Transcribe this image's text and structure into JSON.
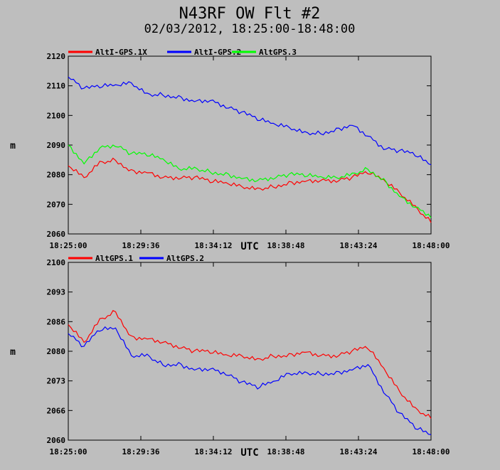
{
  "title": "N43RF OW Flt #2",
  "subtitle": "02/03/2012, 18:25:00-18:48:00",
  "chart_data": [
    {
      "type": "line",
      "xlabel": "UTC",
      "ylabel": "m",
      "x_ticks": [
        "18:25:00",
        "18:29:36",
        "18:34:12",
        "18:38:48",
        "18:43:24",
        "18:48:00"
      ],
      "xlim": [
        "18:25:00",
        "18:48:00"
      ],
      "ylim": [
        2060,
        2120
      ],
      "y_ticks": [
        "2060",
        "2070",
        "2080",
        "2090",
        "2100",
        "2110",
        "2120"
      ],
      "grid": false,
      "legend_position": "top-left",
      "x": [
        "18:25:00",
        "18:26:00",
        "18:27:00",
        "18:28:00",
        "18:29:00",
        "18:30:00",
        "18:31:00",
        "18:32:00",
        "18:33:00",
        "18:34:00",
        "18:35:00",
        "18:36:00",
        "18:37:00",
        "18:38:00",
        "18:39:00",
        "18:40:00",
        "18:41:00",
        "18:42:00",
        "18:43:00",
        "18:44:00",
        "18:45:00",
        "18:46:00",
        "18:47:00",
        "18:48:00"
      ],
      "series": [
        {
          "name": "AltI-GPS.1X",
          "color": "#ff0000",
          "values": [
            2083,
            2079,
            2084,
            2085,
            2081,
            2081,
            2079,
            2079,
            2079,
            2078,
            2077,
            2076,
            2075,
            2076,
            2077,
            2078,
            2078,
            2078,
            2079,
            2081,
            2078,
            2074,
            2069,
            2064
          ]
        },
        {
          "name": "AltI-GPS.2",
          "color": "#0000ff",
          "values": [
            2113,
            2109,
            2110,
            2110,
            2111,
            2107,
            2107,
            2106,
            2105,
            2105,
            2103,
            2101,
            2099,
            2097,
            2096,
            2094,
            2094,
            2095,
            2097,
            2093,
            2089,
            2088,
            2087,
            2083
          ]
        },
        {
          "name": "AltGPS.3",
          "color": "#00ff00",
          "values": [
            2090,
            2084,
            2089,
            2090,
            2087,
            2087,
            2085,
            2082,
            2082,
            2081,
            2080,
            2079,
            2078,
            2079,
            2080,
            2080,
            2079,
            2079,
            2080,
            2082,
            2078,
            2073,
            2069,
            2066
          ]
        }
      ]
    },
    {
      "type": "line",
      "xlabel": "UTC",
      "ylabel": "m",
      "x_ticks": [
        "18:25:00",
        "18:29:36",
        "18:34:12",
        "18:38:48",
        "18:43:24",
        "18:48:00"
      ],
      "xlim": [
        "18:25:00",
        "18:48:00"
      ],
      "ylim": [
        2060,
        2100
      ],
      "y_ticks": [
        "2060",
        "2066",
        "2073",
        "2080",
        "2086",
        "2093",
        "2100"
      ],
      "grid": false,
      "legend_position": "top-left",
      "x": [
        "18:25:00",
        "18:26:00",
        "18:27:00",
        "18:28:00",
        "18:29:00",
        "18:30:00",
        "18:31:00",
        "18:32:00",
        "18:33:00",
        "18:34:00",
        "18:35:00",
        "18:36:00",
        "18:37:00",
        "18:38:00",
        "18:39:00",
        "18:40:00",
        "18:41:00",
        "18:42:00",
        "18:43:00",
        "18:44:00",
        "18:45:00",
        "18:46:00",
        "18:47:00",
        "18:48:00"
      ],
      "series": [
        {
          "name": "AltGPS.1",
          "color": "#ff0000",
          "values": [
            2086,
            2082,
            2087,
            2089,
            2083,
            2083,
            2082,
            2081,
            2080,
            2080,
            2079,
            2079,
            2078,
            2079,
            2079,
            2080,
            2079,
            2079,
            2080,
            2081,
            2076,
            2071,
            2067,
            2065
          ]
        },
        {
          "name": "AltGPS.2",
          "color": "#0000ff",
          "values": [
            2084,
            2081,
            2085,
            2085,
            2079,
            2079,
            2077,
            2077,
            2076,
            2076,
            2075,
            2073,
            2072,
            2073,
            2075,
            2075,
            2075,
            2075,
            2076,
            2077,
            2071,
            2066,
            2063,
            2061
          ]
        }
      ]
    }
  ]
}
